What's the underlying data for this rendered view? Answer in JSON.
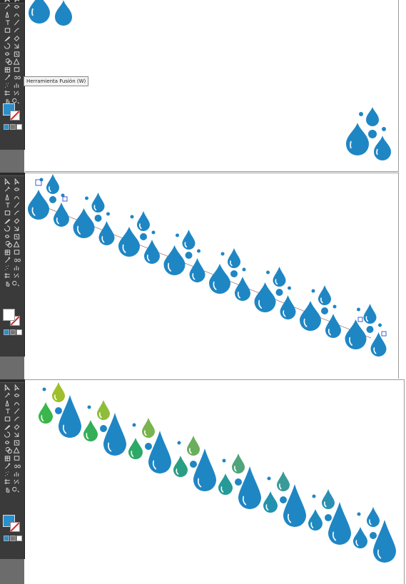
{
  "tooltip": {
    "label": "Herramienta Fusión (W)"
  },
  "icons": [
    "selection-tool-icon",
    "direct-selection-tool-icon",
    "magic-wand-icon",
    "lasso-icon",
    "pen-tool-icon",
    "curvature-icon",
    "type-tool-icon",
    "line-tool-icon",
    "rectangle-tool-icon",
    "brush-tool-icon",
    "pencil-tool-icon",
    "eraser-tool-icon",
    "rotate-tool-icon",
    "scale-tool-icon",
    "warp-tool-icon",
    "free-transform-icon",
    "shape-builder-icon",
    "perspective-icon",
    "mesh-tool-icon",
    "gradient-tool-icon",
    "eyedropper-icon",
    "blend-tool-icon",
    "symbol-sprayer-icon",
    "graph-tool-icon",
    "artboard-tool-icon",
    "slice-tool-icon",
    "hand-tool-icon",
    "zoom-tool-icon"
  ],
  "colors": {
    "toolbar_bg": "#3a3a3a",
    "pasteboard": "#6c6c6c",
    "drop_blue": "#1f86c4",
    "fill_swatch": "#2a8fcd",
    "gradient_start": "#3ab64a",
    "gradient_end": "#1f86c4",
    "selection": "#3b5fd9"
  }
}
